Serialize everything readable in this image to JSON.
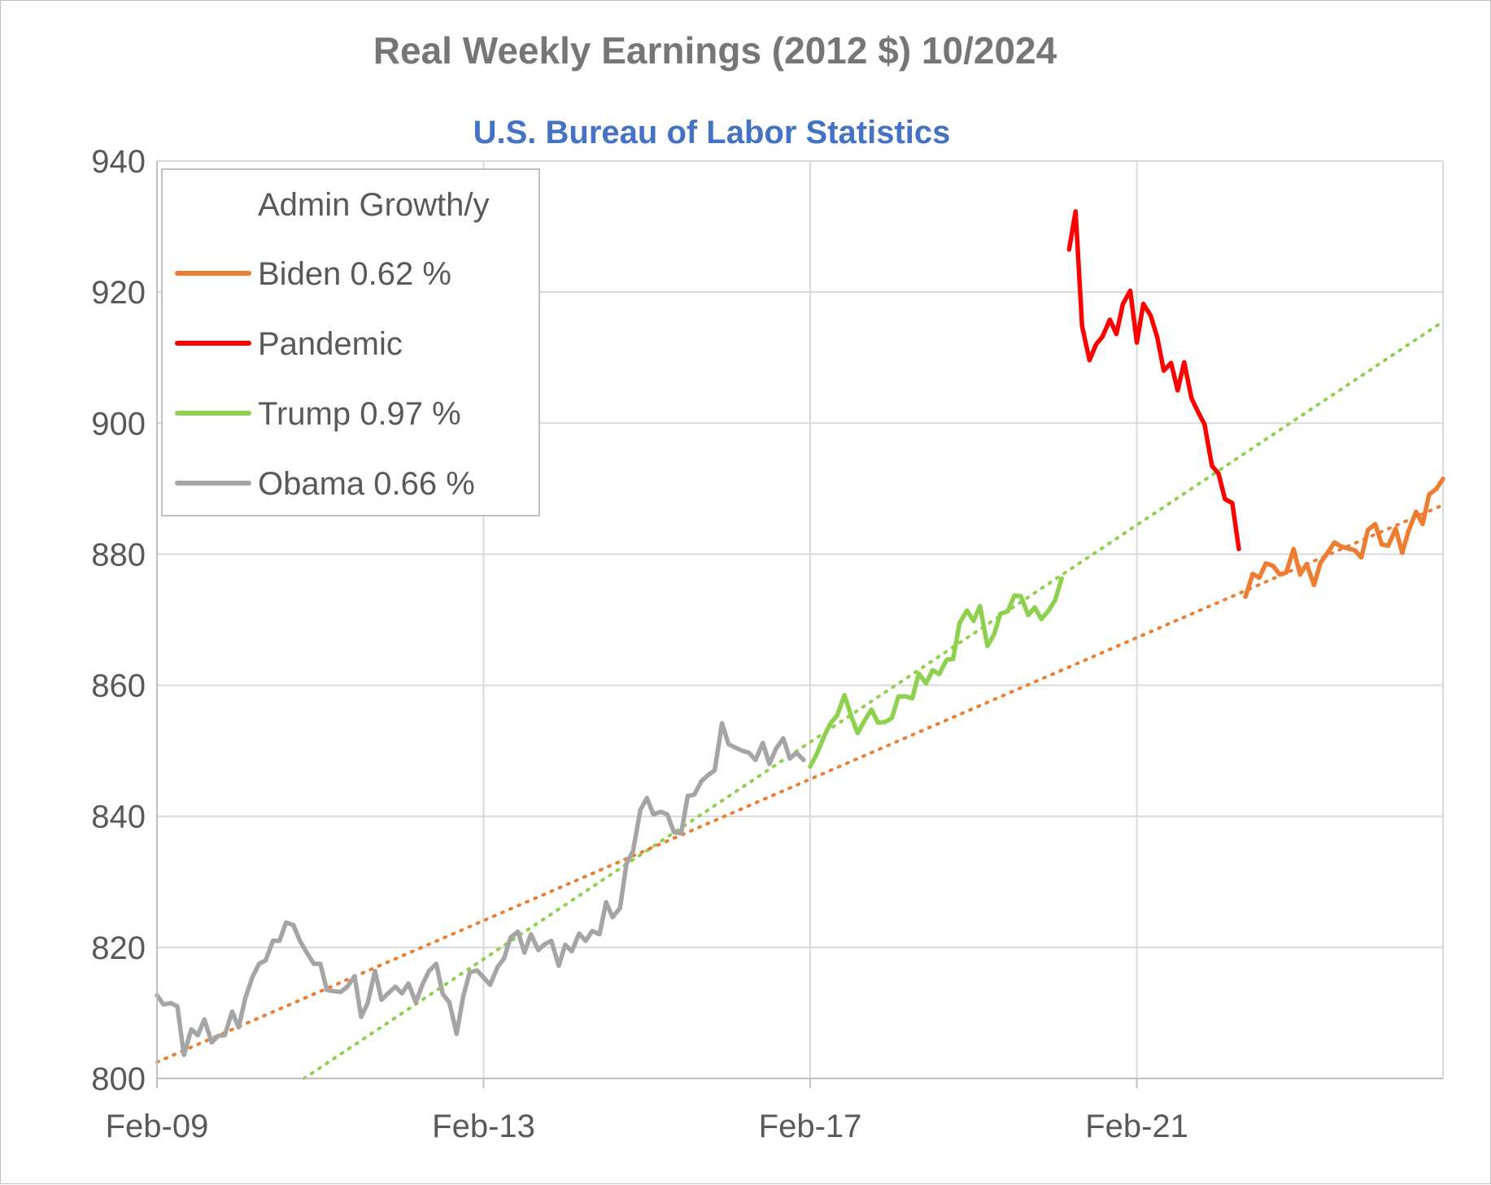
{
  "chart_data": {
    "type": "line",
    "title": "Real Weekly Earnings (2012 $) 10/2024",
    "subtitle": "U.S. Bureau of Labor Statistics",
    "xlabel": "",
    "ylabel": "",
    "xlim": [
      2009.0,
      2024.75
    ],
    "ylim": [
      800,
      940
    ],
    "y_ticks": [
      800,
      820,
      840,
      860,
      880,
      900,
      920,
      940
    ],
    "x_ticks": [
      {
        "x": 2009.0,
        "label": "Feb-09"
      },
      {
        "x": 2013.0,
        "label": "Feb-13"
      },
      {
        "x": 2017.0,
        "label": "Feb-17"
      },
      {
        "x": 2021.0,
        "label": "Feb-21"
      }
    ],
    "gridlines": true,
    "legend": {
      "position": "top-left",
      "header": "Admin Growth/y",
      "entries": [
        {
          "series": "Biden",
          "label": "Biden 0.62 %"
        },
        {
          "series": "Pandemic",
          "label": "Pandemic"
        },
        {
          "series": "Trump",
          "label": "Trump 0.97 %"
        },
        {
          "series": "Obama",
          "label": "Obama 0.66 %"
        }
      ]
    },
    "series": [
      {
        "name": "Obama",
        "color": "#a5a5a5",
        "points": [
          [
            2009.0,
            812.7
          ],
          [
            2009.08,
            811.3
          ],
          [
            2009.17,
            811.5
          ],
          [
            2009.25,
            811.0
          ],
          [
            2009.33,
            803.6
          ],
          [
            2009.42,
            807.5
          ],
          [
            2009.5,
            806.6
          ],
          [
            2009.58,
            809.0
          ],
          [
            2009.67,
            805.5
          ],
          [
            2009.75,
            806.5
          ],
          [
            2009.83,
            806.6
          ],
          [
            2009.92,
            810.2
          ],
          [
            2010.0,
            807.8
          ],
          [
            2010.08,
            812.2
          ],
          [
            2010.17,
            815.5
          ],
          [
            2010.25,
            817.5
          ],
          [
            2010.33,
            818.0
          ],
          [
            2010.42,
            821.0
          ],
          [
            2010.5,
            821.0
          ],
          [
            2010.58,
            823.8
          ],
          [
            2010.67,
            823.4
          ],
          [
            2010.75,
            821.0
          ],
          [
            2010.83,
            819.3
          ],
          [
            2010.92,
            817.5
          ],
          [
            2011.0,
            817.5
          ],
          [
            2011.08,
            813.5
          ],
          [
            2011.17,
            813.3
          ],
          [
            2011.25,
            813.2
          ],
          [
            2011.33,
            814.0
          ],
          [
            2011.42,
            815.6
          ],
          [
            2011.5,
            809.4
          ],
          [
            2011.58,
            811.5
          ],
          [
            2011.67,
            816.4
          ],
          [
            2011.75,
            812.0
          ],
          [
            2011.83,
            813.0
          ],
          [
            2011.92,
            814.0
          ],
          [
            2012.0,
            813.0
          ],
          [
            2012.08,
            814.5
          ],
          [
            2012.17,
            811.6
          ],
          [
            2012.25,
            814.3
          ],
          [
            2012.33,
            816.4
          ],
          [
            2012.42,
            817.5
          ],
          [
            2012.5,
            812.9
          ],
          [
            2012.58,
            811.6
          ],
          [
            2012.67,
            806.8
          ],
          [
            2012.75,
            812.5
          ],
          [
            2012.83,
            816.2
          ],
          [
            2012.92,
            816.5
          ],
          [
            2013.0,
            815.4
          ],
          [
            2013.08,
            814.3
          ],
          [
            2013.17,
            817.0
          ],
          [
            2013.25,
            818.3
          ],
          [
            2013.33,
            821.5
          ],
          [
            2013.42,
            822.4
          ],
          [
            2013.5,
            819.2
          ],
          [
            2013.58,
            822.0
          ],
          [
            2013.67,
            819.6
          ],
          [
            2013.75,
            820.5
          ],
          [
            2013.83,
            821.0
          ],
          [
            2013.92,
            817.2
          ],
          [
            2014.0,
            820.4
          ],
          [
            2014.08,
            819.4
          ],
          [
            2014.17,
            822.1
          ],
          [
            2014.25,
            821.0
          ],
          [
            2014.33,
            822.5
          ],
          [
            2014.42,
            822.0
          ],
          [
            2014.5,
            826.9
          ],
          [
            2014.58,
            824.6
          ],
          [
            2014.67,
            826.0
          ],
          [
            2014.75,
            832.8
          ],
          [
            2014.83,
            834.7
          ],
          [
            2014.92,
            841.0
          ],
          [
            2015.0,
            842.8
          ],
          [
            2015.08,
            840.3
          ],
          [
            2015.17,
            840.7
          ],
          [
            2015.25,
            840.3
          ],
          [
            2015.33,
            837.6
          ],
          [
            2015.42,
            837.4
          ],
          [
            2015.5,
            843.1
          ],
          [
            2015.58,
            843.3
          ],
          [
            2015.67,
            845.4
          ],
          [
            2015.75,
            846.3
          ],
          [
            2015.83,
            847.0
          ],
          [
            2015.92,
            854.2
          ],
          [
            2016.0,
            851.0
          ],
          [
            2016.08,
            850.5
          ],
          [
            2016.17,
            850.0
          ],
          [
            2016.25,
            849.7
          ],
          [
            2016.33,
            848.6
          ],
          [
            2016.42,
            851.2
          ],
          [
            2016.5,
            848.0
          ],
          [
            2016.58,
            850.3
          ],
          [
            2016.67,
            851.9
          ],
          [
            2016.75,
            848.8
          ],
          [
            2016.83,
            849.7
          ],
          [
            2016.92,
            848.6
          ]
        ]
      },
      {
        "name": "Trump",
        "color": "#8ed14f",
        "points": [
          [
            2017.0,
            847.6
          ],
          [
            2017.08,
            849.5
          ],
          [
            2017.17,
            852.2
          ],
          [
            2017.25,
            854.2
          ],
          [
            2017.33,
            855.4
          ],
          [
            2017.42,
            858.5
          ],
          [
            2017.5,
            855.4
          ],
          [
            2017.58,
            852.7
          ],
          [
            2017.67,
            854.7
          ],
          [
            2017.75,
            856.3
          ],
          [
            2017.83,
            854.3
          ],
          [
            2017.92,
            854.4
          ],
          [
            2018.0,
            855.0
          ],
          [
            2018.08,
            858.3
          ],
          [
            2018.17,
            858.3
          ],
          [
            2018.25,
            858.0
          ],
          [
            2018.33,
            861.8
          ],
          [
            2018.42,
            860.3
          ],
          [
            2018.5,
            862.3
          ],
          [
            2018.58,
            861.7
          ],
          [
            2018.67,
            863.9
          ],
          [
            2018.75,
            864.0
          ],
          [
            2018.83,
            869.5
          ],
          [
            2018.92,
            871.4
          ],
          [
            2019.0,
            869.8
          ],
          [
            2019.08,
            872.1
          ],
          [
            2019.17,
            866.0
          ],
          [
            2019.25,
            867.7
          ],
          [
            2019.33,
            870.9
          ],
          [
            2019.42,
            871.3
          ],
          [
            2019.5,
            873.7
          ],
          [
            2019.58,
            873.6
          ],
          [
            2019.67,
            870.7
          ],
          [
            2019.75,
            871.9
          ],
          [
            2019.83,
            870.1
          ],
          [
            2019.92,
            871.4
          ],
          [
            2020.0,
            873.0
          ],
          [
            2020.08,
            876.3
          ]
        ]
      },
      {
        "name": "Pandemic",
        "color": "#ff0000",
        "points": [
          [
            2020.17,
            926.5
          ],
          [
            2020.25,
            932.3
          ],
          [
            2020.33,
            914.8
          ],
          [
            2020.42,
            909.6
          ],
          [
            2020.5,
            912.0
          ],
          [
            2020.58,
            913.2
          ],
          [
            2020.67,
            915.8
          ],
          [
            2020.75,
            913.6
          ],
          [
            2020.83,
            918.2
          ],
          [
            2020.92,
            920.2
          ],
          [
            2021.0,
            912.3
          ],
          [
            2021.08,
            918.2
          ],
          [
            2021.17,
            916.4
          ],
          [
            2021.25,
            913.1
          ],
          [
            2021.33,
            908.0
          ],
          [
            2021.42,
            909.2
          ],
          [
            2021.5,
            905.0
          ],
          [
            2021.58,
            909.3
          ],
          [
            2021.67,
            903.8
          ],
          [
            2021.75,
            901.7
          ],
          [
            2021.83,
            899.8
          ],
          [
            2021.92,
            893.5
          ],
          [
            2022.0,
            892.3
          ],
          [
            2022.08,
            888.4
          ],
          [
            2022.17,
            887.8
          ],
          [
            2022.25,
            880.8
          ]
        ]
      },
      {
        "name": "Biden",
        "color": "#ed7d31",
        "points": [
          [
            2022.33,
            873.5
          ],
          [
            2022.42,
            877.0
          ],
          [
            2022.5,
            876.4
          ],
          [
            2022.58,
            878.6
          ],
          [
            2022.67,
            878.2
          ],
          [
            2022.75,
            876.9
          ],
          [
            2022.83,
            877.2
          ],
          [
            2022.92,
            880.8
          ],
          [
            2023.0,
            876.9
          ],
          [
            2023.08,
            878.5
          ],
          [
            2023.17,
            875.3
          ],
          [
            2023.25,
            878.7
          ],
          [
            2023.33,
            880.1
          ],
          [
            2023.42,
            881.8
          ],
          [
            2023.5,
            881.2
          ],
          [
            2023.58,
            880.9
          ],
          [
            2023.67,
            880.6
          ],
          [
            2023.75,
            879.5
          ],
          [
            2023.83,
            883.7
          ],
          [
            2023.92,
            884.6
          ],
          [
            2024.0,
            881.5
          ],
          [
            2024.08,
            881.3
          ],
          [
            2024.17,
            883.9
          ],
          [
            2024.25,
            880.2
          ],
          [
            2024.33,
            883.6
          ],
          [
            2024.42,
            886.5
          ],
          [
            2024.5,
            884.6
          ],
          [
            2024.58,
            889.1
          ],
          [
            2024.67,
            890.0
          ],
          [
            2024.75,
            891.5
          ]
        ]
      }
    ],
    "trendlines": [
      {
        "name": "Trump trend",
        "color": "#8ed14f",
        "from": [
          2010.8,
          800.0
        ],
        "to": [
          2024.75,
          915.5
        ]
      },
      {
        "name": "Biden trend",
        "color": "#ed7d31",
        "from": [
          2009.0,
          802.5
        ],
        "to": [
          2024.75,
          887.5
        ]
      }
    ]
  }
}
